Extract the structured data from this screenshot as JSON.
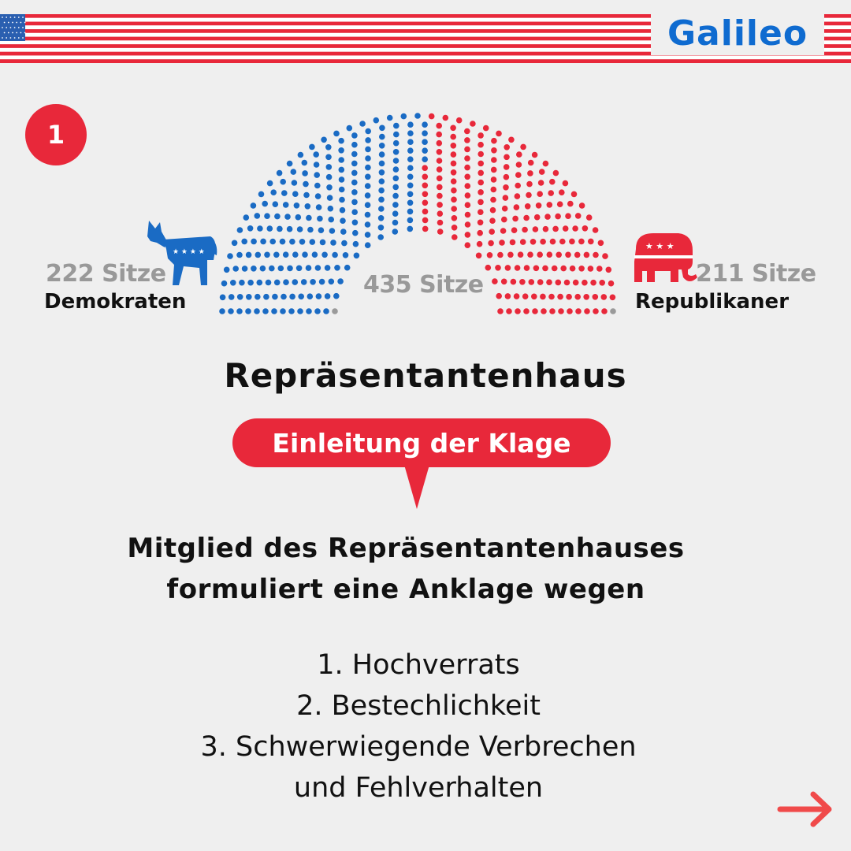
{
  "brand": {
    "logo_text": "Galileo"
  },
  "step_badge": "1",
  "parliament": {
    "total_label": "435 Sitze",
    "democrats": {
      "seats_label": "222 Sitze",
      "name": "Demokraten",
      "color": "#1a6bc4"
    },
    "republicans": {
      "seats_label": "211 Sitze",
      "name": "Republikaner",
      "color": "#e8283a"
    },
    "vacant_color": "#9a9a9a"
  },
  "title": "Repräsentantenhaus",
  "step_label": "Einleitung der Klage",
  "description": {
    "line1": "Mitglied des Repräsentantenhauses",
    "line2": "formuliert eine Anklage wegen"
  },
  "charges": [
    "1. Hochverrats",
    "2. Bestechlichkeit",
    "3. Schwerwiegende Verbrechen",
    "und Fehlverhalten"
  ],
  "icons": {
    "flag": "us-flag-icon",
    "democrat": "donkey-icon",
    "republican": "elephant-icon",
    "next": "arrow-right-icon"
  }
}
